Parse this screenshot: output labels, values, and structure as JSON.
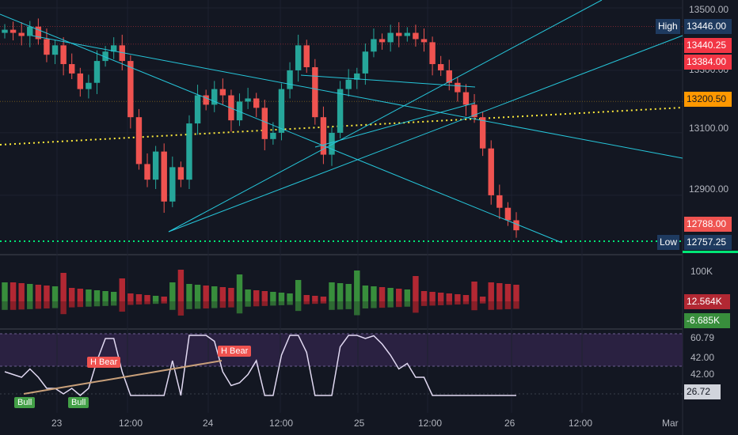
{
  "price_axis": {
    "ticks": [
      "13500.00",
      "13300.00",
      "13100.00",
      "12900.00"
    ],
    "high_label": "High",
    "high_value": "13446.00",
    "level_red_1": "13440.25",
    "level_red_2": "13384.00",
    "level_orange": "13200.50",
    "last_price": "12788.00",
    "low_label": "Low",
    "low_value": "12757.25"
  },
  "volume_axis": {
    "tick": "100K",
    "positive_value": "12.564K",
    "negative_value": "-6.685K"
  },
  "rsi_axis": {
    "ticks": [
      "60.79",
      "42.00",
      "42.00"
    ],
    "current_value": "26.72"
  },
  "time_axis": {
    "ticks": [
      "23",
      "12:00",
      "24",
      "12:00",
      "25",
      "12:00",
      "26",
      "12:00",
      "Mar"
    ]
  },
  "annotations": {
    "bear_label_1": "H Bear",
    "bear_label_2": "H Bear",
    "bull_label_1": "Bull",
    "bull_label_2": "Bull"
  },
  "colors": {
    "background": "#131722",
    "up": "#26a69a",
    "down": "#ef5350",
    "trendline": "#26c6da",
    "dotted_yellow": "#ffeb3b",
    "dotted_green": "#00e676",
    "rsi_line": "#e1d9f2",
    "rsi_band": "#2a2141"
  },
  "chart_data": {
    "type": "candlestick",
    "y_range": [
      12720,
      13510
    ],
    "close_series": [
      13430,
      13420,
      13410,
      13440,
      13400,
      13350,
      13380,
      13320,
      13290,
      13240,
      13260,
      13330,
      13360,
      13380,
      13330,
      13150,
      13000,
      12950,
      13040,
      12880,
      12990,
      12950,
      13130,
      13220,
      13190,
      13240,
      13220,
      13140,
      13200,
      13210,
      13180,
      13080,
      13100,
      13240,
      13300,
      13380,
      13310,
      13150,
      13030,
      13100,
      13240,
      13270,
      13290,
      13360,
      13400,
      13390,
      13420,
      13410,
      13420,
      13400,
      13390,
      13320,
      13300,
      13260,
      13230,
      13190,
      13150,
      13050,
      12900,
      12860,
      12820,
      12788
    ]
  }
}
